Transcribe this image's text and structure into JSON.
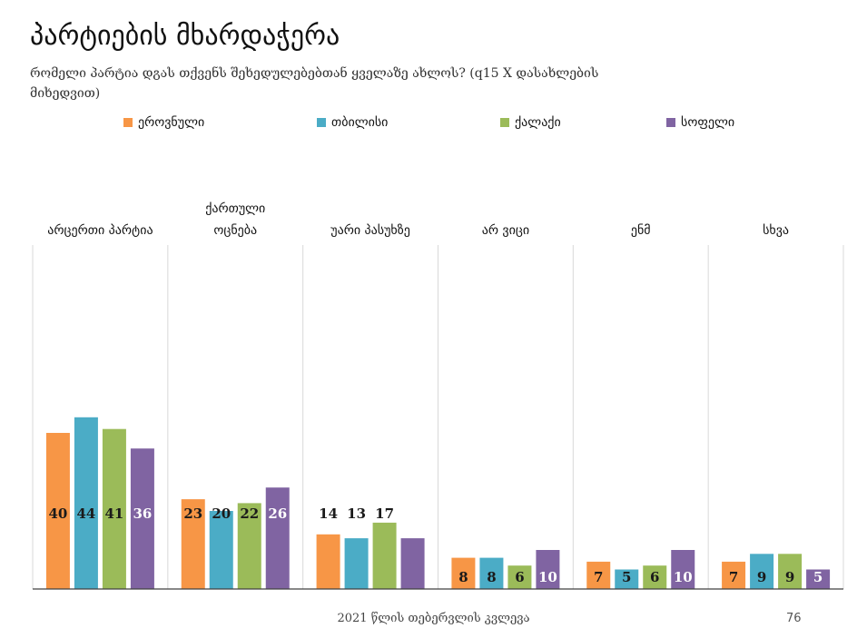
{
  "title": "პარტიების მხარდაჭერა",
  "subtitle": "რომელი პარტია დგას თქვენს შეხედულებებთან ყველაზე ახლოს? (q15 X დასახლების მიხედვით)",
  "footer": "2021 წლის თებერვლის კვლევა",
  "page_number": "76",
  "chart_data": {
    "type": "bar",
    "categories": [
      "არცერთი პარტია",
      "ქართული ოცნება",
      "უარი პასუხზე",
      "არ ვიცი",
      "ენმ",
      "სხვა"
    ],
    "series": [
      {
        "name": "ეროვნული",
        "color": "#F79646",
        "values": [
          40,
          23,
          14,
          8,
          7,
          7
        ]
      },
      {
        "name": "თბილისი",
        "color": "#4BACC6",
        "values": [
          44,
          20,
          13,
          8,
          5,
          9
        ]
      },
      {
        "name": "ქალაქი",
        "color": "#9BBB59",
        "values": [
          41,
          22,
          17,
          6,
          6,
          9
        ]
      },
      {
        "name": "სოფელი",
        "color": "#8064A2",
        "values": [
          36,
          26,
          13,
          10,
          10,
          5
        ]
      }
    ],
    "ylim": [
      0,
      100
    ],
    "legend_position": "top"
  }
}
